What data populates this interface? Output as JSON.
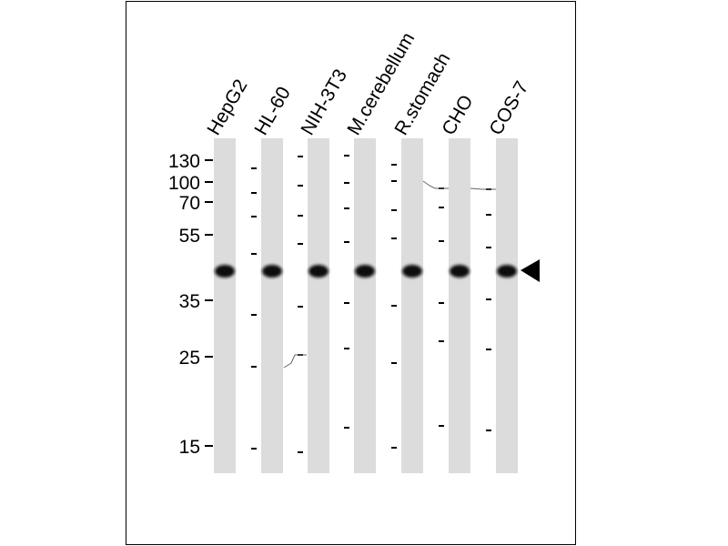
{
  "lanes": [
    "HepG2",
    "HL-60",
    "NIH-3T3",
    "M.cerebellum",
    "R.stomach",
    "CHO",
    "COS-7"
  ],
  "markers": [
    "130",
    "100",
    "70",
    "55",
    "35",
    "25",
    "15"
  ]
}
